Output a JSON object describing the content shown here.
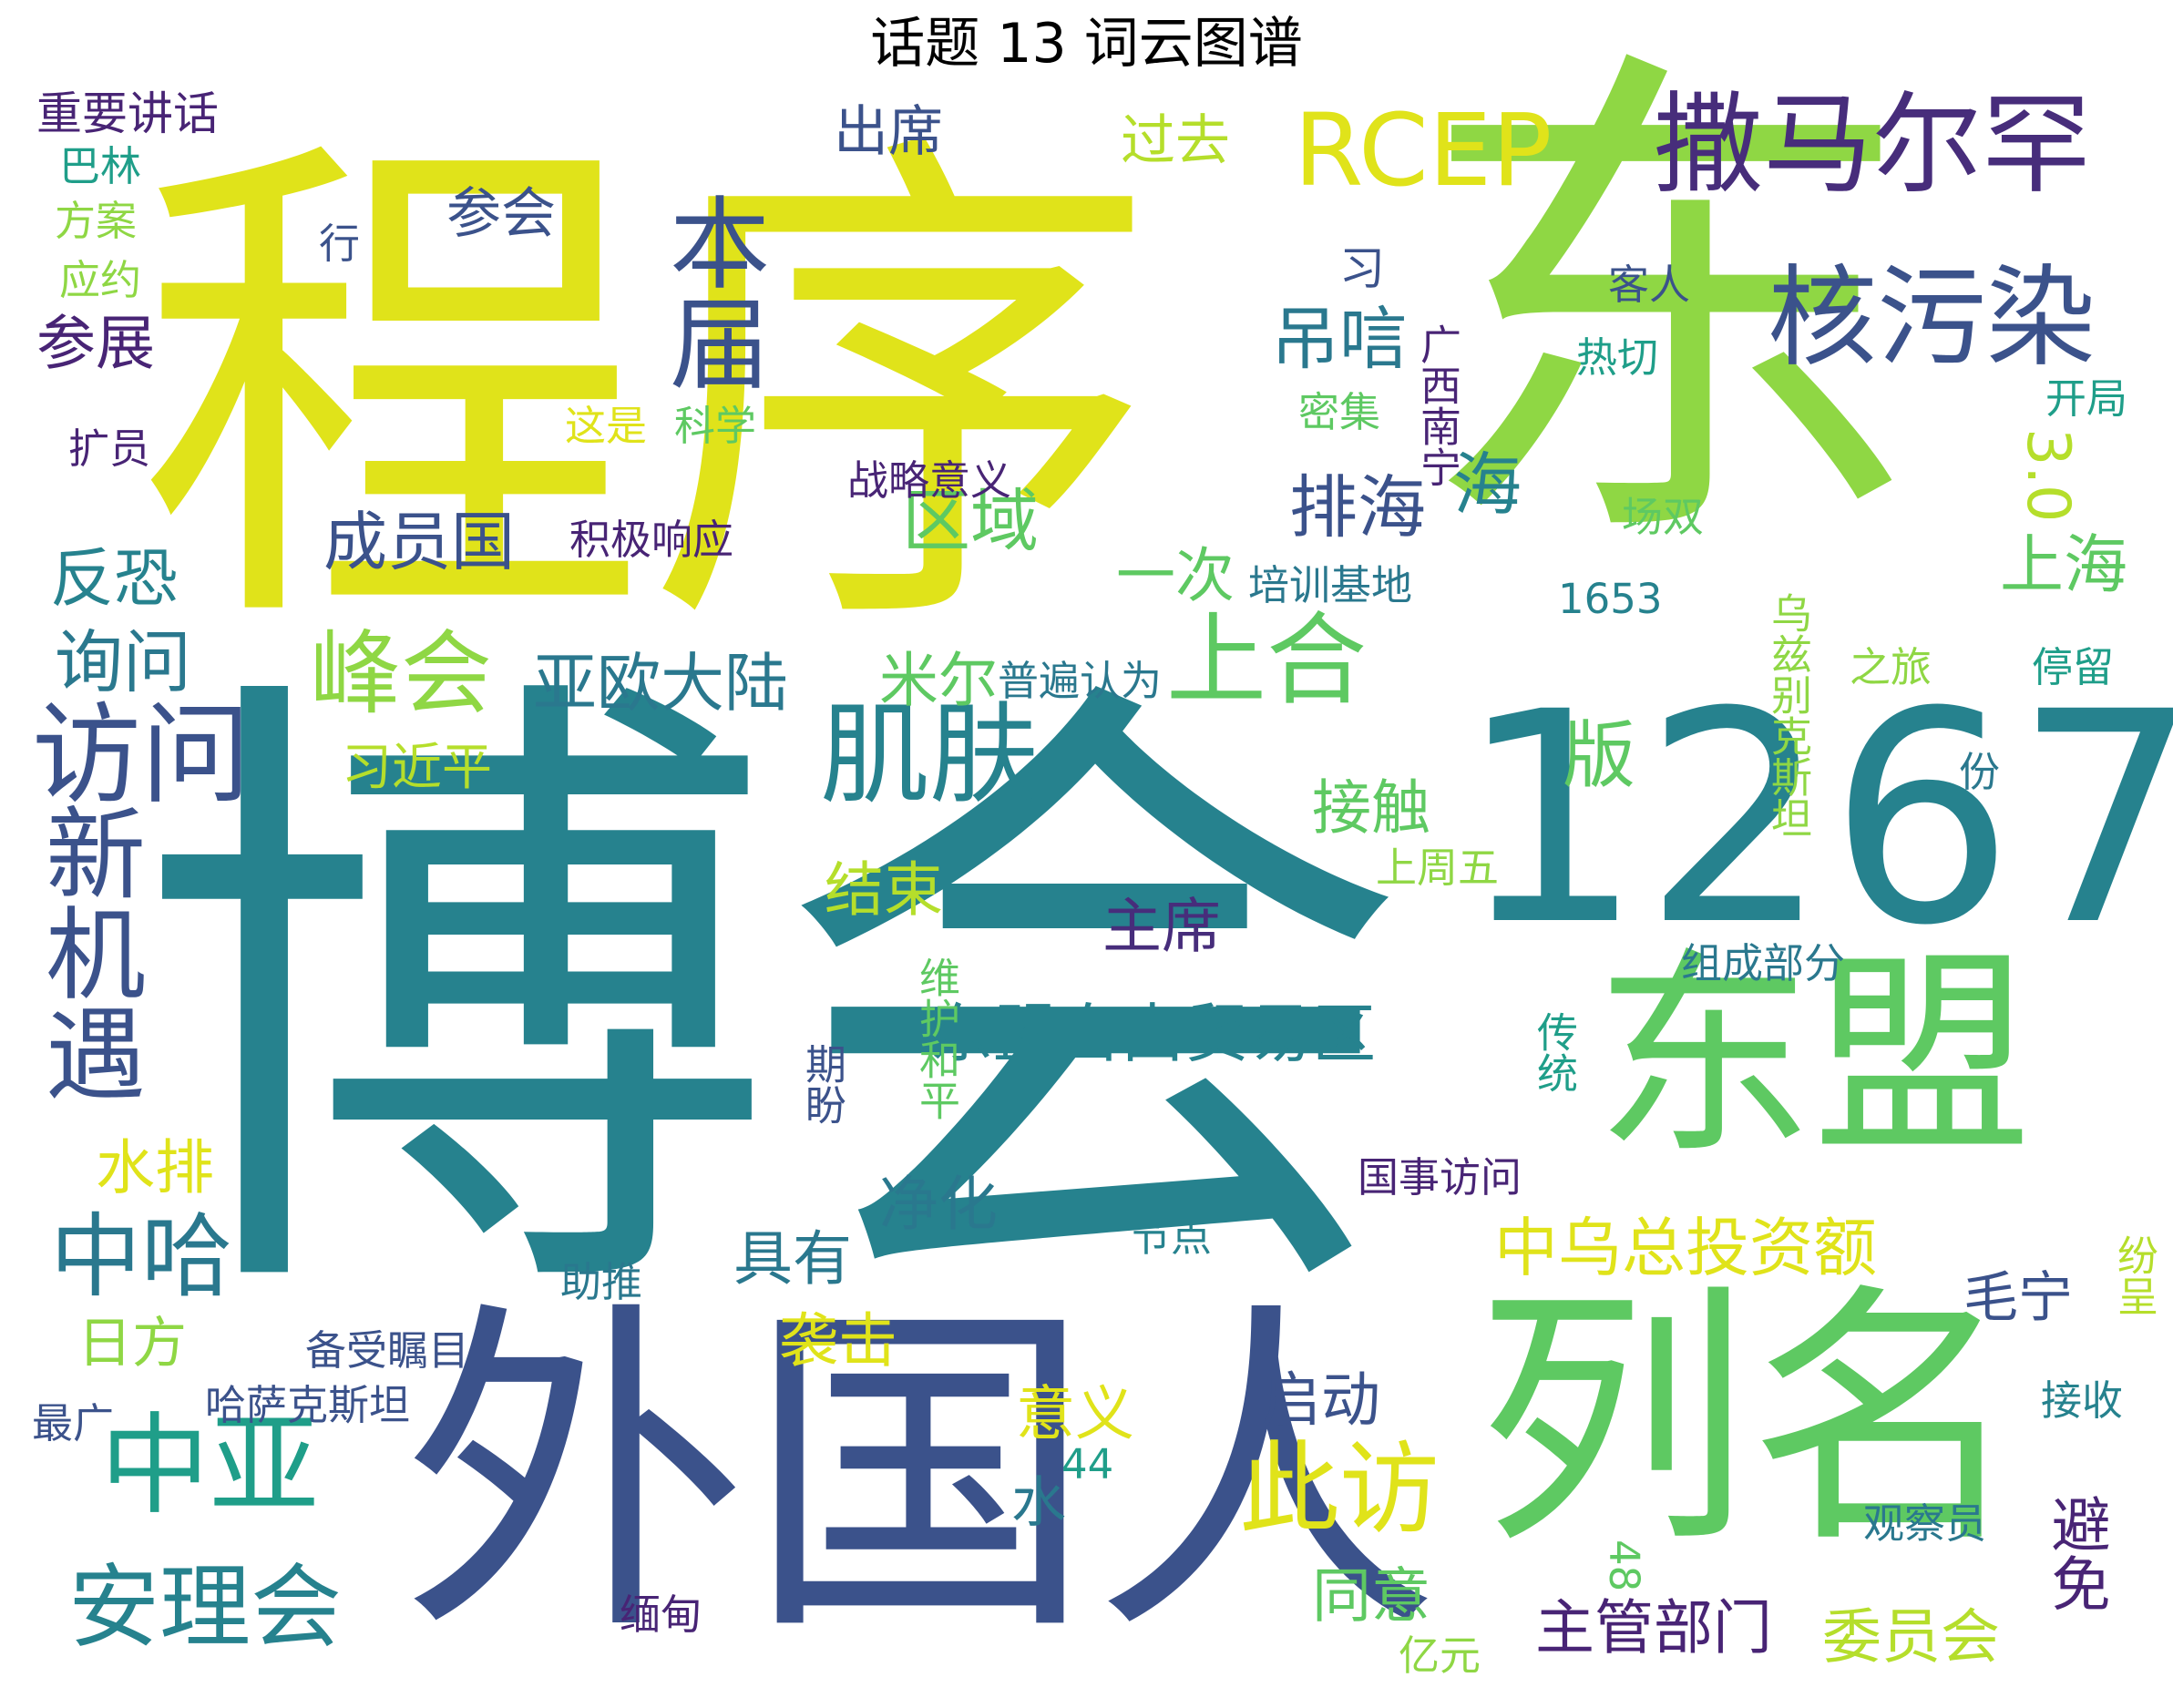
{
  "title": "话题 13 词云图谱",
  "palette": {
    "teal": "#26828e",
    "navy": "#3b528b",
    "purple": "#472d7b",
    "dark_purple": "#482475",
    "green": "#5ec962",
    "light_green": "#8fd744",
    "lime": "#b5de2b",
    "yellow": "#e0e31a",
    "cyan": "#1f9e89",
    "blue_teal": "#2a788e"
  },
  "words": [
    {
      "text": "程序",
      "color": "#e0e31a",
      "vertical": false
    },
    {
      "text": "东",
      "color": "#8fd744",
      "vertical": false
    },
    {
      "text": "博会",
      "color": "#26828e",
      "vertical": false
    },
    {
      "text": "1267",
      "color": "#26828e",
      "vertical": false
    },
    {
      "text": "外国人",
      "color": "#3b528b",
      "vertical": false
    },
    {
      "text": "列名",
      "color": "#5ec962",
      "vertical": false
    },
    {
      "text": "东盟",
      "color": "#5ec962",
      "vertical": false
    },
    {
      "text": "RCEP",
      "color": "#e0e31a",
      "vertical": false
    },
    {
      "text": "撒马尔罕",
      "color": "#472d7b",
      "vertical": false
    },
    {
      "text": "核污染",
      "color": "#3b528b",
      "vertical": false
    },
    {
      "text": "本届",
      "color": "#3b528b",
      "vertical": true
    },
    {
      "text": "肌肤",
      "color": "#26828e",
      "vertical": false
    },
    {
      "text": "上合",
      "color": "#5ec962",
      "vertical": false
    },
    {
      "text": "峰会",
      "color": "#8fd744",
      "vertical": false
    },
    {
      "text": "访问",
      "color": "#3b528b",
      "vertical": false
    },
    {
      "text": "新机遇",
      "color": "#3b528b",
      "vertical": true
    },
    {
      "text": "中亚",
      "color": "#1f9e89",
      "vertical": false
    },
    {
      "text": "安理会",
      "color": "#26828e",
      "vertical": false
    },
    {
      "text": "此访",
      "color": "#e0e31a",
      "vertical": false
    },
    {
      "text": "中哈",
      "color": "#2a788e",
      "vertical": false
    },
    {
      "text": "东盟自由贸易区",
      "color": "#26828e",
      "vertical": false
    },
    {
      "text": "中乌总投资额",
      "color": "#e0e31a",
      "vertical": false
    },
    {
      "text": "吊唁",
      "color": "#2a788e",
      "vertical": false
    },
    {
      "text": "排海",
      "color": "#3b528b",
      "vertical": false
    },
    {
      "text": "区域",
      "color": "#5ec962",
      "vertical": false
    },
    {
      "text": "亚欧大陆",
      "color": "#2a788e",
      "vertical": false
    },
    {
      "text": "成员国",
      "color": "#3b528b",
      "vertical": false
    },
    {
      "text": "询问",
      "color": "#2a788e",
      "vertical": false
    },
    {
      "text": "反恐",
      "color": "#26828e",
      "vertical": false
    },
    {
      "text": "参展",
      "color": "#482475",
      "vertical": false
    },
    {
      "text": "参会",
      "color": "#3b528b",
      "vertical": false
    },
    {
      "text": "出席",
      "color": "#3b528b",
      "vertical": false
    },
    {
      "text": "过去",
      "color": "#b5de2b",
      "vertical": false
    },
    {
      "text": "海",
      "color": "#26828e",
      "vertical": false
    },
    {
      "text": "上海",
      "color": "#5ec962",
      "vertical": false
    },
    {
      "text": "版",
      "color": "#5ec962",
      "vertical": false
    },
    {
      "text": "3.0",
      "color": "#b5de2b",
      "vertical": true
    },
    {
      "text": "米尔",
      "color": "#5ec962",
      "vertical": false
    },
    {
      "text": "一次",
      "color": "#5ec962",
      "vertical": false
    },
    {
      "text": "接触",
      "color": "#5ec962",
      "vertical": false
    },
    {
      "text": "主席",
      "color": "#472d7b",
      "vertical": false
    },
    {
      "text": "结束",
      "color": "#b5de2b",
      "vertical": false
    },
    {
      "text": "水排",
      "color": "#e0e31a",
      "vertical": false
    },
    {
      "text": "净化",
      "color": "#2a788e",
      "vertical": false
    },
    {
      "text": "具有",
      "color": "#2a788e",
      "vertical": false
    },
    {
      "text": "袭击",
      "color": "#e0e31a",
      "vertical": false
    },
    {
      "text": "毛宁",
      "color": "#3b528b",
      "vertical": false
    },
    {
      "text": "日方",
      "color": "#8fd744",
      "vertical": false
    },
    {
      "text": "启动",
      "color": "#3b528b",
      "vertical": false
    },
    {
      "text": "意义",
      "color": "#e0e31a",
      "vertical": false
    },
    {
      "text": "水",
      "color": "#2a788e",
      "vertical": false
    },
    {
      "text": "同意",
      "color": "#5ec962",
      "vertical": false
    },
    {
      "text": "主管部门",
      "color": "#482475",
      "vertical": false
    },
    {
      "text": "委员会",
      "color": "#b5de2b",
      "vertical": false
    },
    {
      "text": "避免",
      "color": "#482475",
      "vertical": true
    },
    {
      "text": "习近平",
      "color": "#b5de2b",
      "vertical": false
    },
    {
      "text": "习",
      "color": "#3b528b",
      "vertical": false
    },
    {
      "text": "重要讲话",
      "color": "#482475",
      "vertical": false
    },
    {
      "text": "巴林",
      "color": "#1f9e89",
      "vertical": false
    },
    {
      "text": "方案",
      "color": "#8fd744",
      "vertical": false
    },
    {
      "text": "应约",
      "color": "#8fd744",
      "vertical": false
    },
    {
      "text": "扩员",
      "color": "#482475",
      "vertical": false
    },
    {
      "text": "行",
      "color": "#3b528b",
      "vertical": false
    },
    {
      "text": "这是",
      "color": "#e0e31a",
      "vertical": false
    },
    {
      "text": "科学",
      "color": "#5ec962",
      "vertical": false
    },
    {
      "text": "战略意义",
      "color": "#482475",
      "vertical": false
    },
    {
      "text": "积极响应",
      "color": "#482475",
      "vertical": false
    },
    {
      "text": "培训基地",
      "color": "#2a788e",
      "vertical": false
    },
    {
      "text": "普遍认为",
      "color": "#2a788e",
      "vertical": false
    },
    {
      "text": "密集",
      "color": "#5ec962",
      "vertical": false
    },
    {
      "text": "广西南宁",
      "color": "#482475",
      "vertical": true
    },
    {
      "text": "客人",
      "color": "#3b528b",
      "vertical": false
    },
    {
      "text": "热切",
      "color": "#1f9e89",
      "vertical": false
    },
    {
      "text": "开局",
      "color": "#1f9e89",
      "vertical": false
    },
    {
      "text": "场双",
      "color": "#5ec962",
      "vertical": false
    },
    {
      "text": "乌兹别克斯坦",
      "color": "#8fd744",
      "vertical": true
    },
    {
      "text": "1653",
      "color": "#26828e",
      "vertical": false
    },
    {
      "text": "之旅",
      "color": "#8fd744",
      "vertical": false
    },
    {
      "text": "停留",
      "color": "#1f9e89",
      "vertical": false
    },
    {
      "text": "份",
      "color": "#2a788e",
      "vertical": false
    },
    {
      "text": "上周五",
      "color": "#8fd744",
      "vertical": false
    },
    {
      "text": "组成部分",
      "color": "#2a788e",
      "vertical": false
    },
    {
      "text": "维护和平",
      "color": "#5ec962",
      "vertical": true
    },
    {
      "text": "期盼",
      "color": "#3b528b",
      "vertical": true
    },
    {
      "text": "传统",
      "color": "#1f9e89",
      "vertical": true
    },
    {
      "text": "国事访问",
      "color": "#482475",
      "vertical": false
    },
    {
      "text": "节点",
      "color": "#26828e",
      "vertical": false
    },
    {
      "text": "助推",
      "color": "#2a788e",
      "vertical": false
    },
    {
      "text": "纷呈",
      "color": "#b5de2b",
      "vertical": true
    },
    {
      "text": "备受瞩目",
      "color": "#3b528b",
      "vertical": false
    },
    {
      "text": "哈萨克斯坦",
      "color": "#3b528b",
      "vertical": false
    },
    {
      "text": "最广",
      "color": "#3b528b",
      "vertical": false
    },
    {
      "text": "44",
      "color": "#1f9e89",
      "vertical": false
    },
    {
      "text": "接收",
      "color": "#26828e",
      "vertical": false
    },
    {
      "text": "观察员",
      "color": "#2a788e",
      "vertical": false
    },
    {
      "text": "48",
      "color": "#5ec962",
      "vertical": true
    },
    {
      "text": "缅甸",
      "color": "#482475",
      "vertical": false
    },
    {
      "text": "亿元",
      "color": "#8fd744",
      "vertical": false
    }
  ]
}
